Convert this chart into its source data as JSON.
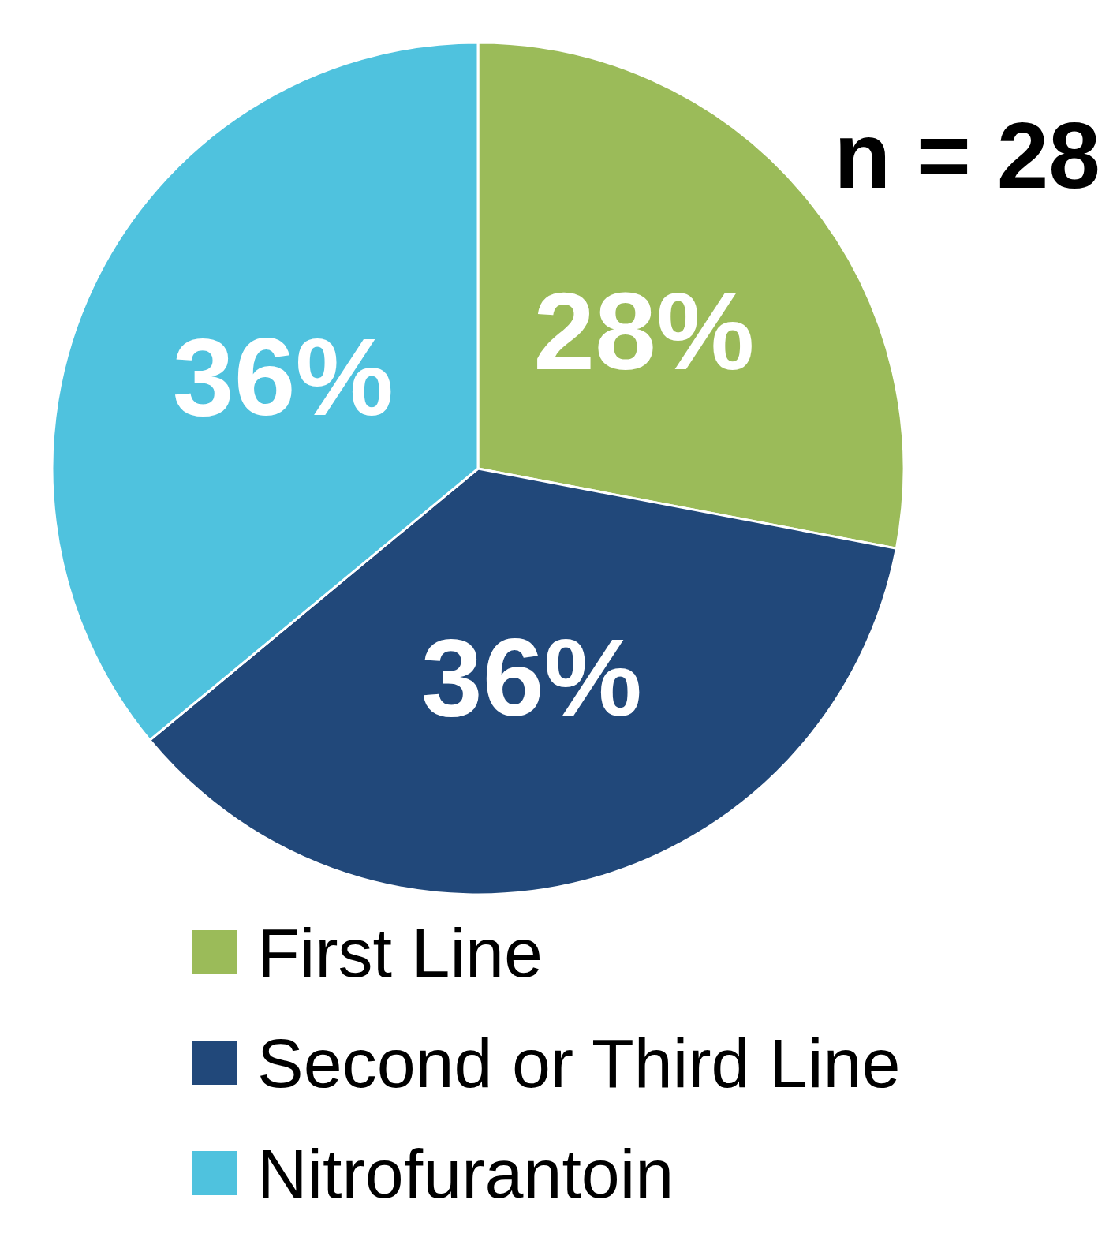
{
  "chart_data": {
    "type": "pie",
    "categories": [
      "First Line",
      "Second or Third Line",
      "Nitrofurantoin"
    ],
    "values": [
      28,
      36,
      36
    ],
    "colors": [
      "#9bbb59",
      "#21487a",
      "#4fc2de"
    ],
    "value_labels": [
      "28%",
      "36%",
      "36%"
    ],
    "annotations": [
      "n = 28"
    ],
    "legend": "bottom"
  }
}
